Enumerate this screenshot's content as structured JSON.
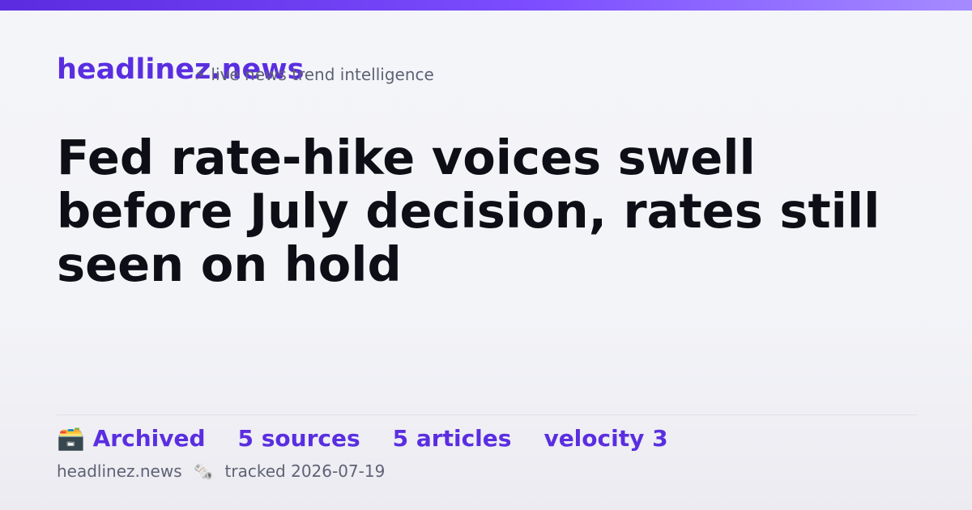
{
  "header": {
    "brand": "headlinez.news",
    "tagline": "⚡ live news trend intelligence"
  },
  "headline": "Fed rate-hike voices swell before July decision, rates still seen on hold",
  "stats": [
    "🗃️ Archived",
    "5 sources",
    "5 articles",
    "velocity 3"
  ],
  "footer": {
    "site": "headlinez.news",
    "icon": "🗞️",
    "tracked": "tracked 2026-07-19"
  }
}
